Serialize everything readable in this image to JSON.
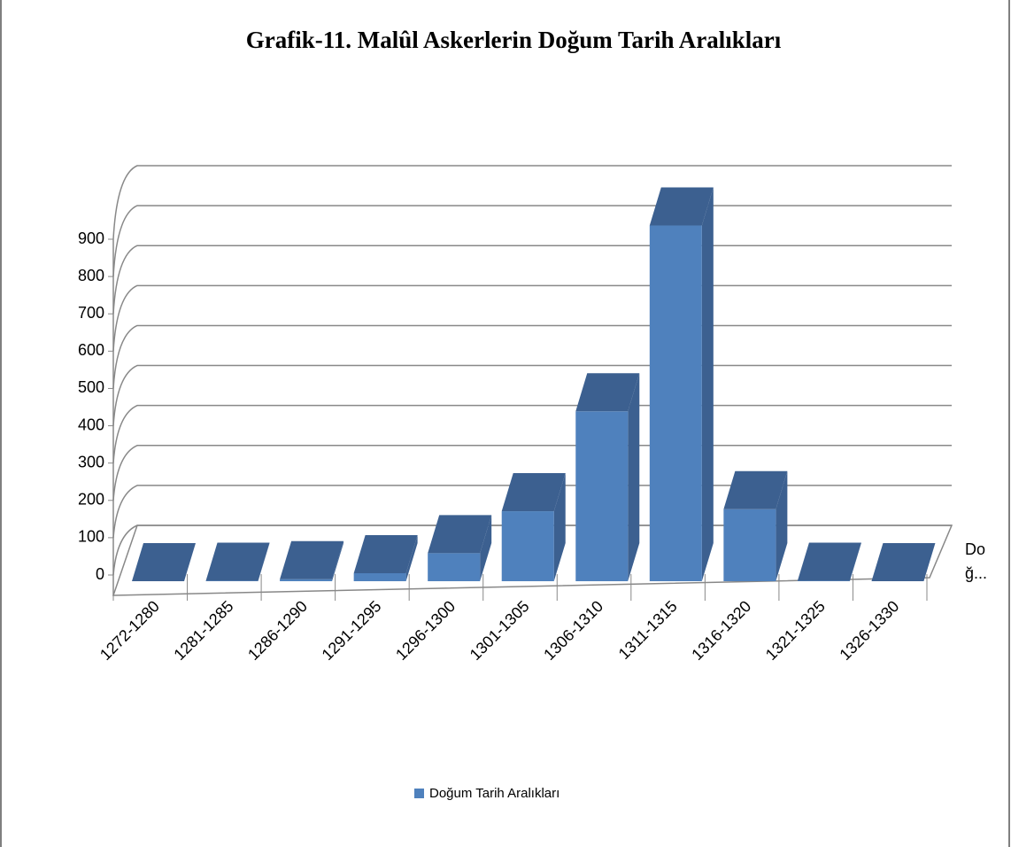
{
  "chart_data": {
    "type": "bar3d",
    "title": "Grafik-11. Malûl Askerlerin Doğum Tarih Aralıkları",
    "categories": [
      "1272-1280",
      "1281-1285",
      "1286-1290",
      "1291-1295",
      "1296-1300",
      "1301-1305",
      "1306-1310",
      "1311-1315",
      "1316-1320",
      "1321-1325",
      "1326-1330"
    ],
    "series": [
      {
        "name": "Doğum Tarih Aralıkları",
        "color": "#4f81bd",
        "values": [
          0,
          1,
          5,
          20,
          70,
          175,
          425,
          890,
          180,
          1,
          0
        ]
      }
    ],
    "depth_label": [
      "Do",
      "ğ..."
    ],
    "ylim": [
      0,
      900
    ],
    "yticks": [
      0,
      100,
      200,
      300,
      400,
      500,
      600,
      700,
      800,
      900
    ],
    "grid": true,
    "legend": "bottom"
  }
}
